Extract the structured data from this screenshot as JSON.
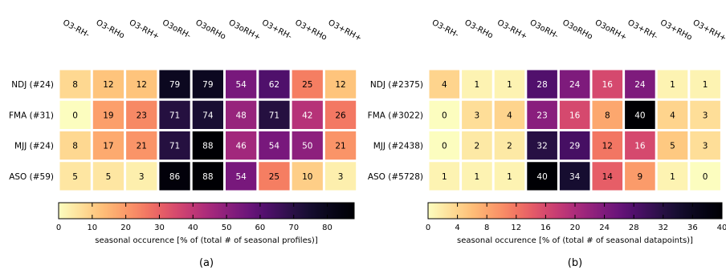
{
  "chart_data": [
    {
      "type": "heatmap",
      "panel_label": "(a)",
      "columns": [
        "O3-RH-",
        "O3-RHo",
        "O3-RH+",
        "O3oRH-",
        "O3oRHo",
        "O3oRH+",
        "O3+RH-",
        "O3+RHo",
        "O3+RH+"
      ],
      "rows": [
        "NDJ (#24)",
        "FMA (#31)",
        "MJJ (#24)",
        "ASO (#59)"
      ],
      "values": [
        [
          8,
          12,
          12,
          79,
          79,
          54,
          62,
          25,
          12
        ],
        [
          0,
          19,
          23,
          71,
          74,
          48,
          71,
          42,
          26
        ],
        [
          8,
          17,
          21,
          71,
          88,
          46,
          54,
          50,
          21
        ],
        [
          5,
          5,
          3,
          86,
          88,
          54,
          25,
          10,
          3
        ]
      ],
      "colorbar": {
        "min": 0,
        "max": 88,
        "ticks": [
          0,
          10,
          20,
          30,
          40,
          50,
          60,
          70,
          80
        ],
        "label": "seasonal occurence [% of (total # of seasonal profiles)]"
      },
      "colormap": "magma_r"
    },
    {
      "type": "heatmap",
      "panel_label": "(b)",
      "columns": [
        "O3-RH-",
        "O3-RHo",
        "O3-RH+",
        "O3oRH-",
        "O3oRHo",
        "O3oRH+",
        "O3+RH-",
        "O3+RHo",
        "O3+RH+"
      ],
      "rows": [
        "NDJ (#2375)",
        "FMA (#3022)",
        "MJJ (#2438)",
        "ASO (#5728)"
      ],
      "values": [
        [
          4,
          1,
          1,
          28,
          24,
          16,
          24,
          1,
          1
        ],
        [
          0,
          3,
          4,
          23,
          16,
          8,
          40,
          4,
          3
        ],
        [
          0,
          2,
          2,
          32,
          29,
          12,
          16,
          5,
          3
        ],
        [
          1,
          1,
          1,
          40,
          34,
          14,
          9,
          1,
          0
        ]
      ],
      "colorbar": {
        "min": 0,
        "max": 40,
        "ticks": [
          0,
          4,
          8,
          12,
          16,
          20,
          24,
          28,
          32,
          36,
          40
        ],
        "label": "seasonal occurence [% of (total # of seasonal datapoints)]"
      },
      "colormap": "magma_r"
    }
  ]
}
